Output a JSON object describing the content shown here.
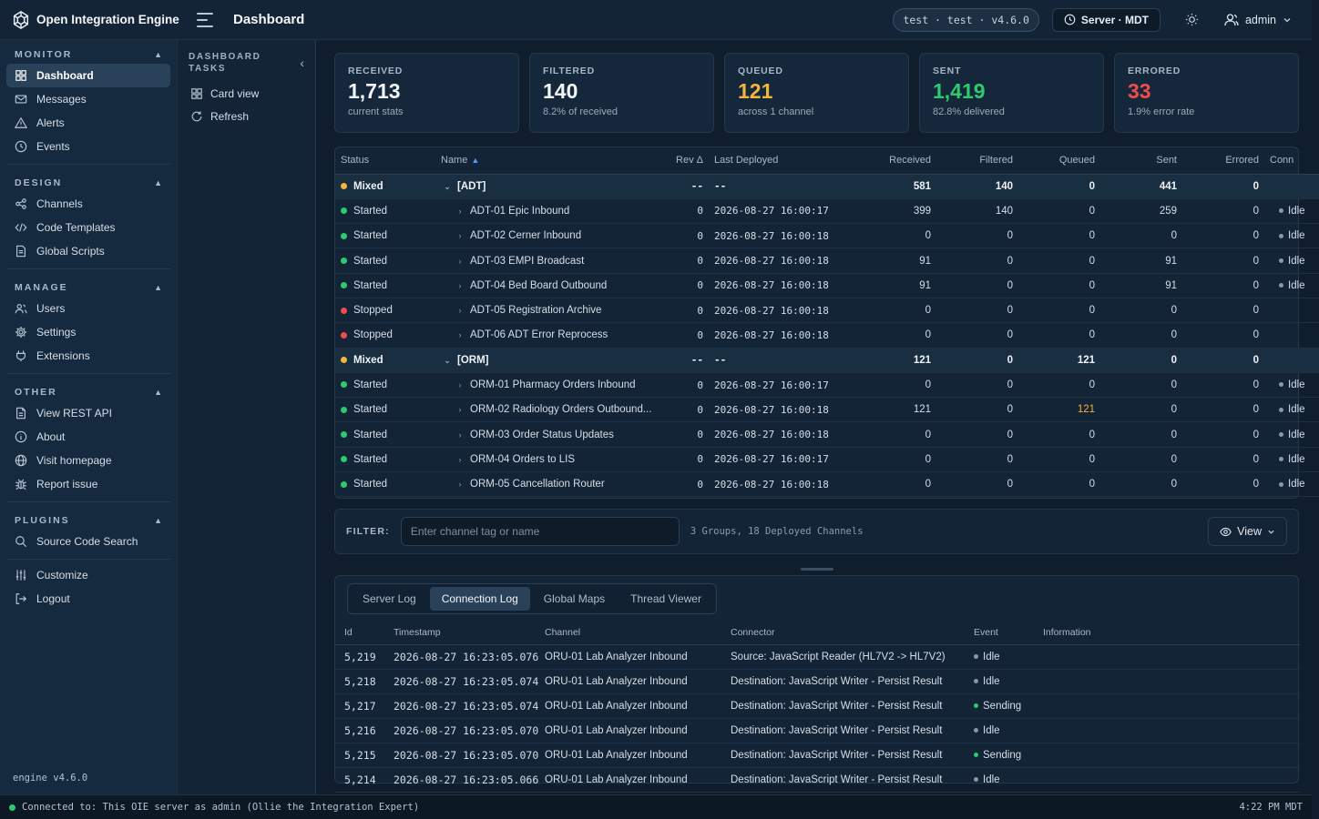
{
  "app": {
    "name": "Open Integration Engine",
    "page_title": "Dashboard",
    "env_pill": "test · test · v4.6.0",
    "server_label": "Server · MDT",
    "user": "admin"
  },
  "colors": {
    "started": "#2fca6d",
    "stopped": "#ef4d4d",
    "mixed": "#f3b53c",
    "idle": "#8a97a6",
    "received_value": "#f2f6fa",
    "queued_value": "#f3b53c",
    "sent_value": "#2fca6d",
    "errored_value": "#ef4d4d"
  },
  "sidebar": {
    "sections": [
      {
        "title": "MONITOR",
        "items": [
          {
            "label": "Dashboard",
            "icon": "grid-icon",
            "active": true
          },
          {
            "label": "Messages",
            "icon": "mail-icon"
          },
          {
            "label": "Alerts",
            "icon": "warning-icon"
          },
          {
            "label": "Events",
            "icon": "clock-icon"
          }
        ]
      },
      {
        "title": "DESIGN",
        "items": [
          {
            "label": "Channels",
            "icon": "share-icon"
          },
          {
            "label": "Code Templates",
            "icon": "code-icon"
          },
          {
            "label": "Global Scripts",
            "icon": "file-icon"
          }
        ]
      },
      {
        "title": "MANAGE",
        "items": [
          {
            "label": "Users",
            "icon": "users-icon"
          },
          {
            "label": "Settings",
            "icon": "gear-icon"
          },
          {
            "label": "Extensions",
            "icon": "plug-icon"
          }
        ]
      },
      {
        "title": "OTHER",
        "items": [
          {
            "label": "View REST API",
            "icon": "document-icon"
          },
          {
            "label": "About",
            "icon": "info-icon"
          },
          {
            "label": "Visit homepage",
            "icon": "globe-icon"
          },
          {
            "label": "Report issue",
            "icon": "bug-icon"
          }
        ]
      },
      {
        "title": "PLUGINS",
        "items": [
          {
            "label": "Source Code Search",
            "icon": "search-icon"
          }
        ]
      }
    ],
    "bottom_items": [
      {
        "label": "Customize",
        "icon": "sliders-icon"
      },
      {
        "label": "Logout",
        "icon": "logout-icon"
      }
    ],
    "footer": "engine v4.6.0"
  },
  "tasks": {
    "title": "DASHBOARD TASKS",
    "items": [
      {
        "label": "Card view",
        "icon": "grid-icon"
      },
      {
        "label": "Refresh",
        "icon": "refresh-icon"
      }
    ]
  },
  "stats": [
    {
      "label": "RECEIVED",
      "value": "1,713",
      "sub": "current stats",
      "color": "#f2f6fa"
    },
    {
      "label": "FILTERED",
      "value": "140",
      "sub": "8.2% of received",
      "color": "#f2f6fa"
    },
    {
      "label": "QUEUED",
      "value": "121",
      "sub": "across 1 channel",
      "color": "#f3b53c"
    },
    {
      "label": "SENT",
      "value": "1,419",
      "sub": "82.8% delivered",
      "color": "#2fca6d"
    },
    {
      "label": "ERRORED",
      "value": "33",
      "sub": "1.9% error rate",
      "color": "#ef4d4d"
    }
  ],
  "channel_table": {
    "columns": [
      "Status",
      "Name",
      "Rev Δ",
      "Last Deployed",
      "Received",
      "Filtered",
      "Queued",
      "Sent",
      "Errored",
      "Conn"
    ],
    "rows": [
      {
        "group": true,
        "status": "Mixed",
        "status_color": "#f3b53c",
        "name": "[ADT]",
        "rev": "--",
        "deployed": "--",
        "received": "581",
        "filtered": "140",
        "queued": "0",
        "sent": "441",
        "errored": "0",
        "conn": ""
      },
      {
        "status": "Started",
        "status_color": "#2fca6d",
        "name": "ADT-01 Epic Inbound",
        "rev": "0",
        "deployed": "2026-08-27 16:00:17",
        "received": "399",
        "filtered": "140",
        "queued": "0",
        "sent": "259",
        "errored": "0",
        "conn": "Idle"
      },
      {
        "status": "Started",
        "status_color": "#2fca6d",
        "name": "ADT-02 Cerner Inbound",
        "rev": "0",
        "deployed": "2026-08-27 16:00:18",
        "received": "0",
        "filtered": "0",
        "queued": "0",
        "sent": "0",
        "errored": "0",
        "conn": "Idle"
      },
      {
        "status": "Started",
        "status_color": "#2fca6d",
        "name": "ADT-03 EMPI Broadcast",
        "rev": "0",
        "deployed": "2026-08-27 16:00:18",
        "received": "91",
        "filtered": "0",
        "queued": "0",
        "sent": "91",
        "errored": "0",
        "conn": "Idle"
      },
      {
        "status": "Started",
        "status_color": "#2fca6d",
        "name": "ADT-04 Bed Board Outbound",
        "rev": "0",
        "deployed": "2026-08-27 16:00:18",
        "received": "91",
        "filtered": "0",
        "queued": "0",
        "sent": "91",
        "errored": "0",
        "conn": "Idle"
      },
      {
        "status": "Stopped",
        "status_color": "#ef4d4d",
        "name": "ADT-05 Registration Archive",
        "rev": "0",
        "deployed": "2026-08-27 16:00:18",
        "received": "0",
        "filtered": "0",
        "queued": "0",
        "sent": "0",
        "errored": "0",
        "conn": ""
      },
      {
        "status": "Stopped",
        "status_color": "#ef4d4d",
        "name": "ADT-06 ADT Error Reprocess",
        "rev": "0",
        "deployed": "2026-08-27 16:00:18",
        "received": "0",
        "filtered": "0",
        "queued": "0",
        "sent": "0",
        "errored": "0",
        "conn": ""
      },
      {
        "group": true,
        "status": "Mixed",
        "status_color": "#f3b53c",
        "name": "[ORM]",
        "rev": "--",
        "deployed": "--",
        "received": "121",
        "filtered": "0",
        "queued": "121",
        "sent": "0",
        "errored": "0",
        "conn": ""
      },
      {
        "status": "Started",
        "status_color": "#2fca6d",
        "name": "ORM-01 Pharmacy Orders Inbound",
        "rev": "0",
        "deployed": "2026-08-27 16:00:17",
        "received": "0",
        "filtered": "0",
        "queued": "0",
        "sent": "0",
        "errored": "0",
        "conn": "Idle"
      },
      {
        "status": "Started",
        "status_color": "#2fca6d",
        "name": "ORM-02 Radiology Orders Outbound...",
        "rev": "0",
        "deployed": "2026-08-27 16:00:18",
        "received": "121",
        "filtered": "0",
        "queued": "121",
        "sent": "0",
        "errored": "0",
        "conn": "Idle",
        "queued_warn": true
      },
      {
        "status": "Started",
        "status_color": "#2fca6d",
        "name": "ORM-03 Order Status Updates",
        "rev": "0",
        "deployed": "2026-08-27 16:00:18",
        "received": "0",
        "filtered": "0",
        "queued": "0",
        "sent": "0",
        "errored": "0",
        "conn": "Idle"
      },
      {
        "status": "Started",
        "status_color": "#2fca6d",
        "name": "ORM-04 Orders to LIS",
        "rev": "0",
        "deployed": "2026-08-27 16:00:17",
        "received": "0",
        "filtered": "0",
        "queued": "0",
        "sent": "0",
        "errored": "0",
        "conn": "Idle"
      },
      {
        "status": "Started",
        "status_color": "#2fca6d",
        "name": "ORM-05 Cancellation Router",
        "rev": "0",
        "deployed": "2026-08-27 16:00:18",
        "received": "0",
        "filtered": "0",
        "queued": "0",
        "sent": "0",
        "errored": "0",
        "conn": "Idle"
      }
    ]
  },
  "filter": {
    "label": "FILTER:",
    "placeholder": "Enter channel tag or name",
    "value": "",
    "summary": "3 Groups, 18 Deployed Channels",
    "view_label": "View"
  },
  "log": {
    "tabs": [
      {
        "label": "Server Log"
      },
      {
        "label": "Connection Log",
        "active": true
      },
      {
        "label": "Global Maps"
      },
      {
        "label": "Thread Viewer"
      }
    ],
    "columns": [
      "Id",
      "Timestamp",
      "Channel",
      "Connector",
      "Event",
      "Information"
    ],
    "rows": [
      {
        "id": "5,219",
        "timestamp": "2026-08-27 16:23:05.076",
        "channel": "ORU-01 Lab Analyzer Inbound",
        "connector": "Source: JavaScript Reader (HL7V2 -> HL7V2)",
        "event": "Idle",
        "event_color": "#8a97a6",
        "info": ""
      },
      {
        "id": "5,218",
        "timestamp": "2026-08-27 16:23:05.074",
        "channel": "ORU-01 Lab Analyzer Inbound",
        "connector": "Destination: JavaScript Writer - Persist Result",
        "event": "Idle",
        "event_color": "#8a97a6",
        "info": ""
      },
      {
        "id": "5,217",
        "timestamp": "2026-08-27 16:23:05.074",
        "channel": "ORU-01 Lab Analyzer Inbound",
        "connector": "Destination: JavaScript Writer - Persist Result",
        "event": "Sending",
        "event_color": "#2fca6d",
        "info": ""
      },
      {
        "id": "5,216",
        "timestamp": "2026-08-27 16:23:05.070",
        "channel": "ORU-01 Lab Analyzer Inbound",
        "connector": "Destination: JavaScript Writer - Persist Result",
        "event": "Idle",
        "event_color": "#8a97a6",
        "info": ""
      },
      {
        "id": "5,215",
        "timestamp": "2026-08-27 16:23:05.070",
        "channel": "ORU-01 Lab Analyzer Inbound",
        "connector": "Destination: JavaScript Writer - Persist Result",
        "event": "Sending",
        "event_color": "#2fca6d",
        "info": ""
      },
      {
        "id": "5,214",
        "timestamp": "2026-08-27 16:23:05.066",
        "channel": "ORU-01 Lab Analyzer Inbound",
        "connector": "Destination: JavaScript Writer - Persist Result",
        "event": "Idle",
        "event_color": "#8a97a6",
        "info": ""
      }
    ]
  },
  "statusbar": {
    "text": "Connected to: This OIE server as admin (Ollie the Integration Expert)",
    "time": "4:22 PM MDT"
  }
}
